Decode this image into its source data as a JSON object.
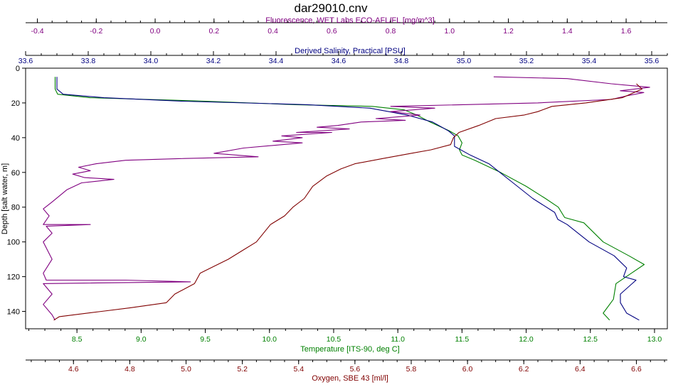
{
  "chart_data": {
    "type": "line",
    "title": "dar29010.cnv",
    "grid": false,
    "legend": "none",
    "y_axis": {
      "label": "Depth [salt water, m]",
      "range": [
        0,
        150
      ],
      "inverted": true,
      "ticks": [
        0,
        20,
        40,
        60,
        80,
        100,
        120,
        140
      ]
    },
    "x_axes": [
      {
        "id": "fluorescence",
        "label": "Fluorescence, WET Labs ECO-AFL/FL [mg/m^3]",
        "position": "top-outer",
        "color": "#800080",
        "range": [
          -0.44,
          1.74
        ],
        "ticks": [
          "-0.4",
          "-0.2",
          "0.0",
          "0.2",
          "0.4",
          "0.6",
          "0.8",
          "1.0",
          "1.2",
          "1.4",
          "1.6"
        ]
      },
      {
        "id": "salinity",
        "label": "Derived Salinity, Practical [PSU]",
        "position": "top-inner",
        "color": "#000080",
        "range": [
          33.6,
          35.65
        ],
        "ticks": [
          "33.6",
          "33.8",
          "34.0",
          "34.2",
          "34.4",
          "34.6",
          "34.8",
          "35.0",
          "35.2",
          "35.4",
          "35.6"
        ]
      },
      {
        "id": "temperature",
        "label": "Temperature [ITS-90, deg C]",
        "position": "bottom-inner",
        "color": "#008000",
        "range": [
          8.1,
          13.1
        ],
        "ticks": [
          "8.5",
          "9.0",
          "9.5",
          "10.0",
          "10.5",
          "11.0",
          "11.5",
          "12.0",
          "12.5",
          "13.0"
        ]
      },
      {
        "id": "oxygen",
        "label": "Oxygen, SBE 43 [ml/l]",
        "position": "bottom-outer",
        "color": "#800000",
        "range": [
          4.43,
          6.71
        ],
        "ticks": [
          "4.6",
          "4.8",
          "5.0",
          "5.2",
          "5.4",
          "5.6",
          "5.8",
          "6.0",
          "6.2",
          "6.4",
          "6.6"
        ]
      }
    ],
    "series": [
      {
        "axis": "temperature",
        "color": "#008000",
        "points": [
          [
            8.33,
            5
          ],
          [
            8.33,
            12
          ],
          [
            8.35,
            15
          ],
          [
            8.6,
            17
          ],
          [
            9.5,
            19
          ],
          [
            10.2,
            21
          ],
          [
            10.8,
            22
          ],
          [
            11.05,
            24
          ],
          [
            11.15,
            27
          ],
          [
            11.25,
            31
          ],
          [
            11.4,
            36
          ],
          [
            11.47,
            39
          ],
          [
            11.5,
            43
          ],
          [
            11.48,
            47
          ],
          [
            11.5,
            50
          ],
          [
            11.6,
            53
          ],
          [
            11.8,
            60
          ],
          [
            12.0,
            68
          ],
          [
            12.15,
            75
          ],
          [
            12.25,
            80
          ],
          [
            12.3,
            86
          ],
          [
            12.45,
            89
          ],
          [
            12.6,
            100
          ],
          [
            12.8,
            108
          ],
          [
            12.92,
            113
          ],
          [
            12.82,
            118
          ],
          [
            12.7,
            124
          ],
          [
            12.68,
            133
          ],
          [
            12.6,
            141
          ],
          [
            12.65,
            145
          ]
        ]
      },
      {
        "axis": "salinity",
        "color": "#000080",
        "points": [
          [
            33.7,
            5
          ],
          [
            33.7,
            12
          ],
          [
            33.72,
            15
          ],
          [
            33.85,
            17
          ],
          [
            34.1,
            19
          ],
          [
            34.5,
            21
          ],
          [
            34.7,
            23
          ],
          [
            34.82,
            27
          ],
          [
            34.9,
            31
          ],
          [
            34.95,
            36
          ],
          [
            34.97,
            39
          ],
          [
            34.97,
            45
          ],
          [
            35.02,
            50
          ],
          [
            35.08,
            55
          ],
          [
            35.15,
            65
          ],
          [
            35.22,
            75
          ],
          [
            35.29,
            83
          ],
          [
            35.3,
            87
          ],
          [
            35.33,
            90
          ],
          [
            35.4,
            100
          ],
          [
            35.48,
            108
          ],
          [
            35.52,
            115
          ],
          [
            35.51,
            120
          ],
          [
            35.55,
            122
          ],
          [
            35.5,
            130
          ],
          [
            35.5,
            135
          ],
          [
            35.52,
            141
          ],
          [
            35.56,
            145
          ]
        ]
      },
      {
        "axis": "fluorescence",
        "color": "#800080",
        "points": [
          [
            1.15,
            5
          ],
          [
            1.4,
            6
          ],
          [
            1.55,
            9
          ],
          [
            1.68,
            11
          ],
          [
            1.58,
            13
          ],
          [
            1.66,
            14
          ],
          [
            1.6,
            16
          ],
          [
            1.55,
            18
          ],
          [
            1.3,
            20
          ],
          [
            0.8,
            22
          ],
          [
            0.95,
            23
          ],
          [
            0.8,
            25
          ],
          [
            0.9,
            27
          ],
          [
            0.75,
            29
          ],
          [
            0.85,
            30
          ],
          [
            0.7,
            31
          ],
          [
            0.62,
            33
          ],
          [
            0.55,
            34
          ],
          [
            0.66,
            35
          ],
          [
            0.48,
            37
          ],
          [
            0.6,
            37
          ],
          [
            0.43,
            39
          ],
          [
            0.5,
            40
          ],
          [
            0.4,
            42
          ],
          [
            0.5,
            43
          ],
          [
            0.3,
            46
          ],
          [
            0.2,
            49
          ],
          [
            0.35,
            51
          ],
          [
            0.1,
            52
          ],
          [
            -0.1,
            53
          ],
          [
            -0.2,
            55
          ],
          [
            -0.26,
            57
          ],
          [
            -0.22,
            59
          ],
          [
            -0.28,
            61
          ],
          [
            -0.24,
            63
          ],
          [
            -0.14,
            64
          ],
          [
            -0.25,
            66
          ],
          [
            -0.3,
            70
          ],
          [
            -0.35,
            77
          ],
          [
            -0.38,
            81
          ],
          [
            -0.36,
            85
          ],
          [
            -0.38,
            90
          ],
          [
            -0.22,
            90
          ],
          [
            -0.37,
            91
          ],
          [
            -0.35,
            95
          ],
          [
            -0.38,
            100
          ],
          [
            -0.35,
            110
          ],
          [
            -0.38,
            118
          ],
          [
            -0.37,
            122
          ],
          [
            -0.1,
            122
          ],
          [
            0.12,
            123
          ],
          [
            -0.38,
            124
          ],
          [
            -0.35,
            130
          ],
          [
            -0.38,
            136
          ],
          [
            -0.35,
            142
          ],
          [
            -0.34,
            145
          ]
        ]
      },
      {
        "axis": "oxygen",
        "color": "#800000",
        "points": [
          [
            6.6,
            9
          ],
          [
            6.62,
            12
          ],
          [
            6.55,
            17
          ],
          [
            6.42,
            20
          ],
          [
            6.3,
            22
          ],
          [
            6.25,
            25
          ],
          [
            6.2,
            27
          ],
          [
            6.1,
            29
          ],
          [
            6.04,
            33
          ],
          [
            5.97,
            37
          ],
          [
            5.95,
            40
          ],
          [
            5.94,
            44
          ],
          [
            5.87,
            47
          ],
          [
            5.8,
            49
          ],
          [
            5.7,
            52
          ],
          [
            5.6,
            55
          ],
          [
            5.55,
            58
          ],
          [
            5.5,
            62
          ],
          [
            5.45,
            68
          ],
          [
            5.42,
            75
          ],
          [
            5.38,
            80
          ],
          [
            5.35,
            85
          ],
          [
            5.3,
            90
          ],
          [
            5.25,
            100
          ],
          [
            5.2,
            105
          ],
          [
            5.15,
            110
          ],
          [
            5.1,
            114
          ],
          [
            5.05,
            118
          ],
          [
            5.03,
            124
          ],
          [
            4.96,
            130
          ],
          [
            4.93,
            135
          ],
          [
            4.8,
            138
          ],
          [
            4.7,
            140
          ],
          [
            4.55,
            143
          ],
          [
            4.53,
            145
          ]
        ]
      }
    ]
  }
}
